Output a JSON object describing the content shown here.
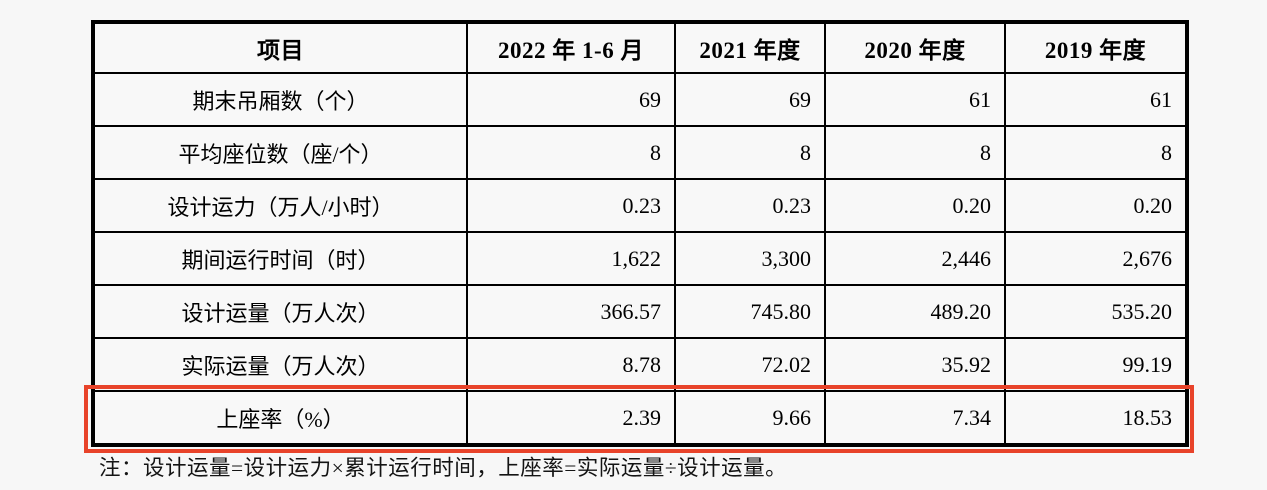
{
  "table": {
    "columns": [
      "项目",
      "2022 年 1-6 月",
      "2021 年度",
      "2020 年度",
      "2019 年度"
    ],
    "rows": [
      {
        "label": "期末吊厢数（个）",
        "values": [
          "69",
          "69",
          "61",
          "61"
        ]
      },
      {
        "label": "平均座位数（座/个）",
        "values": [
          "8",
          "8",
          "8",
          "8"
        ]
      },
      {
        "label": "设计运力（万人/小时）",
        "values": [
          "0.23",
          "0.23",
          "0.20",
          "0.20"
        ]
      },
      {
        "label": "期间运行时间（时）",
        "values": [
          "1,622",
          "3,300",
          "2,446",
          "2,676"
        ]
      },
      {
        "label": "设计运量（万人次）",
        "values": [
          "366.57",
          "745.80",
          "489.20",
          "535.20"
        ]
      },
      {
        "label": "实际运量（万人次）",
        "values": [
          "8.78",
          "72.02",
          "35.92",
          "99.19"
        ]
      },
      {
        "label": "上座率（%）",
        "values": [
          "2.39",
          "9.66",
          "7.34",
          "18.53"
        ],
        "highlighted": true
      }
    ],
    "note": "注：设计运量=设计运力×累计运行时间，上座率=实际运量÷设计运量。",
    "highlight_color": "#e8432a"
  }
}
